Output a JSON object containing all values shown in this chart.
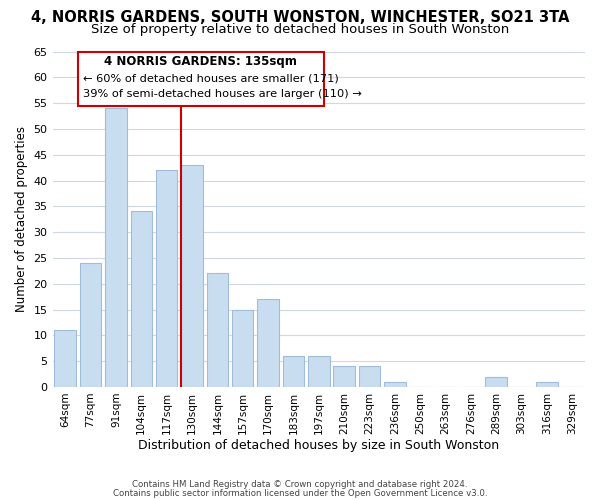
{
  "title": "4, NORRIS GARDENS, SOUTH WONSTON, WINCHESTER, SO21 3TA",
  "subtitle": "Size of property relative to detached houses in South Wonston",
  "xlabel": "Distribution of detached houses by size in South Wonston",
  "ylabel": "Number of detached properties",
  "footer_line1": "Contains HM Land Registry data © Crown copyright and database right 2024.",
  "footer_line2": "Contains public sector information licensed under the Open Government Licence v3.0.",
  "bar_labels": [
    "64sqm",
    "77sqm",
    "91sqm",
    "104sqm",
    "117sqm",
    "130sqm",
    "144sqm",
    "157sqm",
    "170sqm",
    "183sqm",
    "197sqm",
    "210sqm",
    "223sqm",
    "236sqm",
    "250sqm",
    "263sqm",
    "276sqm",
    "289sqm",
    "303sqm",
    "316sqm",
    "329sqm"
  ],
  "bar_values": [
    11,
    24,
    54,
    34,
    42,
    43,
    22,
    15,
    17,
    6,
    6,
    4,
    4,
    1,
    0,
    0,
    0,
    2,
    0,
    1,
    0
  ],
  "bar_color": "#c9ddf0",
  "bar_edge_color": "#a0bcd8",
  "highlight_line_index": 5,
  "highlight_line_color": "#cc0000",
  "annotation_title": "4 NORRIS GARDENS: 135sqm",
  "annotation_line1": "← 60% of detached houses are smaller (171)",
  "annotation_line2": "39% of semi-detached houses are larger (110) →",
  "annotation_box_edge_color": "#cc0000",
  "annotation_box_bg": "#ffffff",
  "ylim": [
    0,
    65
  ],
  "yticks": [
    0,
    5,
    10,
    15,
    20,
    25,
    30,
    35,
    40,
    45,
    50,
    55,
    60,
    65
  ],
  "background_color": "#ffffff",
  "grid_color": "#d0d8e8",
  "title_fontsize": 10.5,
  "subtitle_fontsize": 9.5
}
